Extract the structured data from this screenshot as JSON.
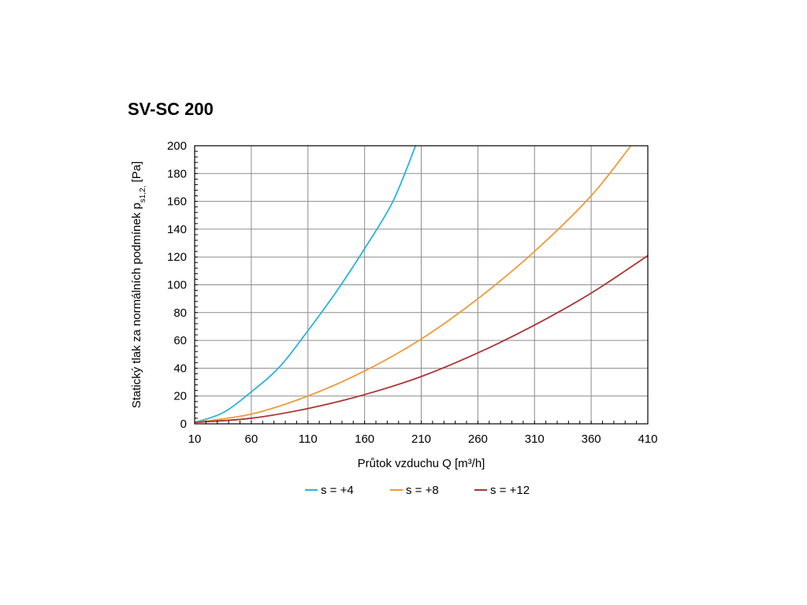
{
  "chart_data": {
    "type": "line",
    "title": "SV-SC 200",
    "xlabel": "Průtok vzduchu Q [m³/h]",
    "ylabel": {
      "text": "Statický tlak za normálních podmínek p",
      "subscript": "s1,2,",
      "unit": " [Pa]"
    },
    "xlim": [
      10,
      410
    ],
    "ylim": [
      0,
      200
    ],
    "xticks": [
      10,
      60,
      110,
      160,
      210,
      260,
      310,
      360,
      410
    ],
    "yticks": [
      0,
      20,
      40,
      60,
      80,
      100,
      120,
      140,
      160,
      180,
      200
    ],
    "grid": true,
    "legend_position": "bottom",
    "series": [
      {
        "name": "s = +4",
        "color": "#2bb3d6",
        "x": [
          10,
          35,
          60,
          85,
          110,
          135,
          160,
          185,
          205
        ],
        "y": [
          1,
          8,
          23,
          41,
          67,
          95,
          126,
          160,
          200
        ]
      },
      {
        "name": "s = +8",
        "color": "#ee9a3a",
        "x": [
          10,
          60,
          110,
          160,
          210,
          260,
          310,
          360,
          395
        ],
        "y": [
          1,
          7,
          20,
          38,
          61,
          90,
          124,
          164,
          200
        ]
      },
      {
        "name": "s = +12",
        "color": "#aa3535",
        "x": [
          10,
          60,
          110,
          160,
          210,
          260,
          310,
          360,
          410
        ],
        "y": [
          1,
          4,
          11,
          21,
          34,
          51,
          71,
          94,
          121
        ]
      }
    ]
  }
}
